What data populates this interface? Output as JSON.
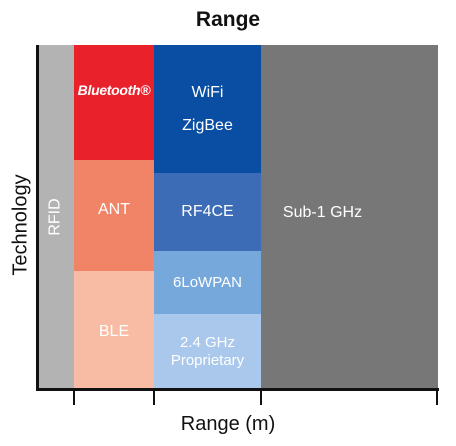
{
  "title": "Range",
  "axes": {
    "y_label": "Technology",
    "x_label": "Range (m)"
  },
  "technologies": {
    "rfid": "RFID",
    "bluetooth": "Bluetooth®",
    "ant": "ANT",
    "ble": "BLE",
    "wifi": "WiFi",
    "zigbee": "ZigBee",
    "rf4ce": "RF4CE",
    "sixlowpan": "6LoWPAN",
    "proprietary_line1": "2.4 GHz",
    "proprietary_line2": "Proprietary",
    "sub1ghz": "Sub-1 GHz"
  },
  "colors": {
    "rfid": "#b3b3b3",
    "bluetooth": "#e8212a",
    "ant": "#f18367",
    "ble": "#f8bca4",
    "wifi_zigbee": "#0a4ea3",
    "rf4ce": "#3c6cb5",
    "sixlowpan": "#76a8dc",
    "proprietary": "#a9c8eb",
    "sub1ghz": "#777777"
  }
}
